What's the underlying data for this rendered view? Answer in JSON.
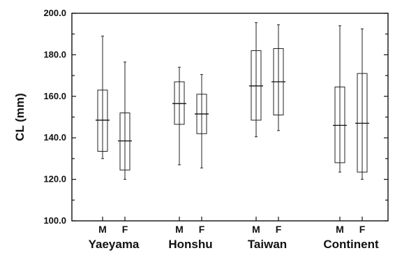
{
  "chart_data": {
    "type": "boxplot",
    "ylabel": "CL  (mm)",
    "ylim": [
      100,
      200
    ],
    "yticks": [
      "100.0",
      "120.0",
      "140.0",
      "160.0",
      "180.0",
      "200.0"
    ],
    "grid": false,
    "groups": [
      {
        "name": "Yaeyama",
        "boxes": [
          {
            "label": "M",
            "min": 130,
            "q1": 133.5,
            "median": 148.5,
            "q3": 163,
            "max": 189
          },
          {
            "label": "F",
            "min": 120,
            "q1": 124.5,
            "median": 138.5,
            "q3": 152,
            "max": 176.5
          }
        ]
      },
      {
        "name": "Honshu",
        "boxes": [
          {
            "label": "M",
            "min": 127,
            "q1": 146.5,
            "median": 156.5,
            "q3": 167,
            "max": 174
          },
          {
            "label": "F",
            "min": 125.5,
            "q1": 142,
            "median": 151.5,
            "q3": 161,
            "max": 170.5
          }
        ]
      },
      {
        "name": "Taiwan",
        "boxes": [
          {
            "label": "M",
            "min": 140.5,
            "q1": 148.5,
            "median": 165,
            "q3": 182,
            "max": 195.5
          },
          {
            "label": "F",
            "min": 143.5,
            "q1": 151,
            "median": 167,
            "q3": 183,
            "max": 194.5
          }
        ]
      },
      {
        "name": "Continent",
        "boxes": [
          {
            "label": "M",
            "min": 123.5,
            "q1": 128,
            "median": 146,
            "q3": 164.5,
            "max": 194
          },
          {
            "label": "F",
            "min": 120,
            "q1": 123.5,
            "median": 147,
            "q3": 171,
            "max": 192.5
          }
        ]
      }
    ]
  }
}
